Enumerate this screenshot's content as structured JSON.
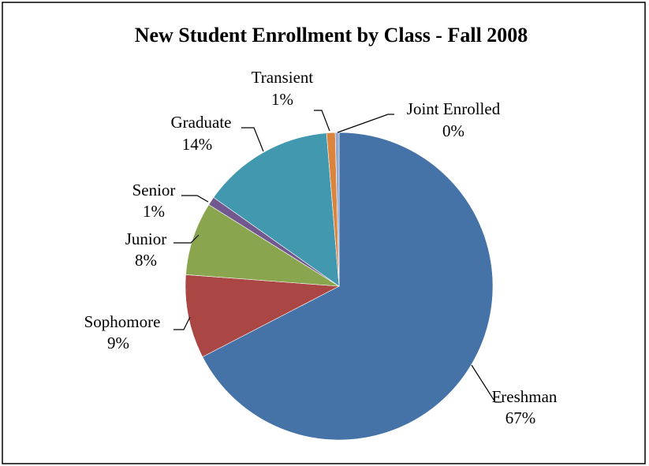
{
  "chart_data": {
    "type": "pie",
    "title": "New Student Enrollment by Class - Fall 2008",
    "categories": [
      "Freshman",
      "Sophomore",
      "Junior",
      "Senior",
      "Graduate",
      "Transient",
      "Joint Enrolled"
    ],
    "values": [
      67.4,
      8.8,
      7.7,
      0.9,
      13.9,
      0.9,
      0.4
    ],
    "value_labels": [
      "67%",
      "9%",
      "8%",
      "1%",
      "14%",
      "1%",
      "0%"
    ],
    "colors": [
      "#4572a7",
      "#aa4643",
      "#89a54e",
      "#71588f",
      "#4198af",
      "#db843d",
      "#93a9cf"
    ]
  }
}
